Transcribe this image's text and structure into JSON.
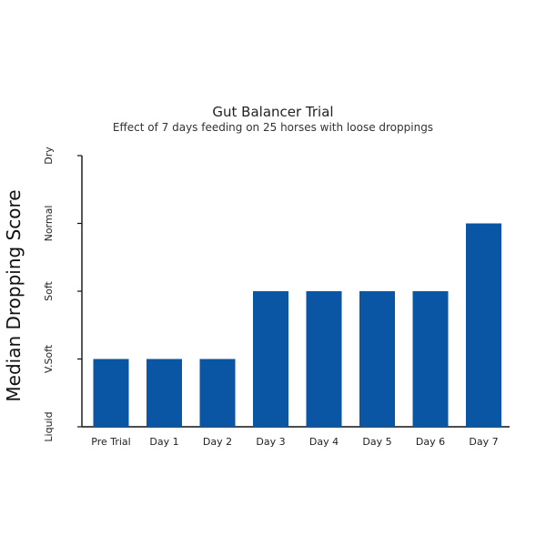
{
  "chart_data": {
    "type": "bar",
    "title": "Gut Balancer Trial",
    "subtitle": "Effect of 7 days feeding on 25 horses with loose droppings",
    "xlabel": "",
    "ylabel": "Median Dropping Score",
    "categories": [
      "Pre Trial",
      "Day 1",
      "Day 2",
      "Day 3",
      "Day 4",
      "Day 5",
      "Day 6",
      "Day 7"
    ],
    "values": [
      1,
      1,
      1,
      2,
      2,
      2,
      2,
      3
    ],
    "y_tick_labels": [
      "Liquid",
      "V.Soft",
      "Soft",
      "Normal",
      "Dry"
    ],
    "ylim": [
      0,
      4
    ],
    "bar_color": "#0b56a4",
    "grid": false,
    "legend": "none"
  }
}
